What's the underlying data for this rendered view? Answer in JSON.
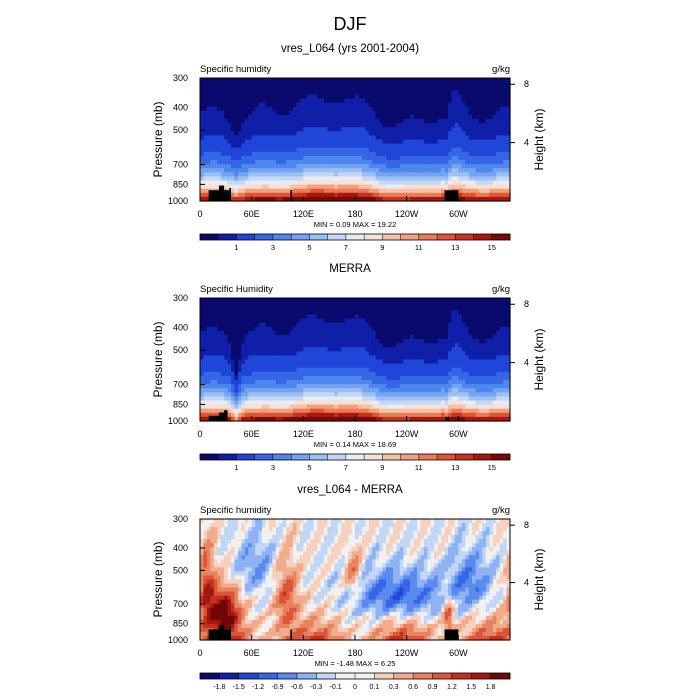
{
  "figure": {
    "title": "DJF"
  },
  "chart_data": [
    {
      "type": "heatmap",
      "title": "vres_L064 (yrs 2001-2004)",
      "left_label": "Specific humidity",
      "right_label": "g/kg",
      "xlabel": "",
      "ylabel": "Pressure (mb)",
      "ylabel_right": "Height (km)",
      "x_ticks": [
        "0",
        "60E",
        "120E",
        "180",
        "120W",
        "60W"
      ],
      "x_tick_values": [
        0,
        60,
        120,
        180,
        240,
        300
      ],
      "xlim": [
        0,
        360
      ],
      "y_ticks": [
        "300",
        "400",
        "500",
        "700",
        "850",
        "1000"
      ],
      "y_tick_values": [
        300,
        400,
        500,
        700,
        850,
        1000
      ],
      "ylim": [
        1000,
        300
      ],
      "y_ticks_right": [
        "8",
        "4"
      ],
      "y_tick_values_right": [
        8,
        4
      ],
      "stats": "MIN =   0.09  MAX =  19.22",
      "colorbar_labels": [
        "1",
        "3",
        "5",
        "7",
        "9",
        "11",
        "13",
        "15"
      ],
      "colorbar_levels": [
        0.5,
        1,
        2,
        3,
        4,
        5,
        6,
        7,
        8,
        9,
        10,
        11,
        12,
        13,
        14,
        15,
        16
      ],
      "field": "humidity",
      "variant": "model"
    },
    {
      "type": "heatmap",
      "title": "MERRA",
      "left_label": "Specific Humidity",
      "right_label": "g/kg",
      "xlabel": "",
      "ylabel": "Pressure (mb)",
      "ylabel_right": "Height (km)",
      "x_ticks": [
        "0",
        "60E",
        "120E",
        "180",
        "120W",
        "60W"
      ],
      "x_tick_values": [
        0,
        60,
        120,
        180,
        240,
        300
      ],
      "xlim": [
        0,
        360
      ],
      "y_ticks": [
        "300",
        "400",
        "500",
        "700",
        "850",
        "1000"
      ],
      "y_tick_values": [
        300,
        400,
        500,
        700,
        850,
        1000
      ],
      "ylim": [
        1000,
        300
      ],
      "y_ticks_right": [
        "8",
        "4"
      ],
      "y_tick_values_right": [
        8,
        4
      ],
      "stats": "MIN =   0.14  MAX =  18.69",
      "colorbar_labels": [
        "1",
        "3",
        "5",
        "7",
        "9",
        "11",
        "13",
        "15"
      ],
      "colorbar_levels": [
        0.5,
        1,
        2,
        3,
        4,
        5,
        6,
        7,
        8,
        9,
        10,
        11,
        12,
        13,
        14,
        15,
        16
      ],
      "field": "humidity",
      "variant": "obs"
    },
    {
      "type": "heatmap",
      "title": "vres_L064 - MERRA",
      "left_label": "Specific humidity",
      "right_label": "g/kg",
      "xlabel": "",
      "ylabel": "Pressure (mb)",
      "ylabel_right": "Height (km)",
      "x_ticks": [
        "0",
        "60E",
        "120E",
        "180",
        "120W",
        "60W"
      ],
      "x_tick_values": [
        0,
        60,
        120,
        180,
        240,
        300
      ],
      "xlim": [
        0,
        360
      ],
      "y_ticks": [
        "300",
        "400",
        "500",
        "700",
        "850",
        "1000"
      ],
      "y_tick_values": [
        300,
        400,
        500,
        700,
        850,
        1000
      ],
      "ylim": [
        1000,
        300
      ],
      "y_ticks_right": [
        "8",
        "4"
      ],
      "y_tick_values_right": [
        8,
        4
      ],
      "stats": "MIN =  -1.48  MAX =   6.25",
      "colorbar_labels": [
        "-1.8",
        "-1.5",
        "-1.2",
        "-0.9",
        "-0.6",
        "-0.3",
        "-0.1",
        "0",
        "0.1",
        "0.3",
        "0.6",
        "0.9",
        "1.2",
        "1.5",
        "1.8"
      ],
      "colorbar_levels": [
        -1.8,
        -1.5,
        -1.2,
        -0.9,
        -0.6,
        -0.3,
        -0.1,
        0,
        0.1,
        0.3,
        0.6,
        0.9,
        1.2,
        1.5,
        1.8
      ],
      "field": "difference",
      "variant": "diff"
    }
  ],
  "colors": {
    "humidity_palette": [
      "#0a0a6e",
      "#0f1fa8",
      "#1f46d8",
      "#3466e6",
      "#4f86ef",
      "#73a3f3",
      "#9cbff5",
      "#c4d7f6",
      "#e6edf7",
      "#f6e1d6",
      "#f6c3a8",
      "#f2a07e",
      "#eb7a56",
      "#de5434",
      "#c8321e",
      "#a81810",
      "#7a0a08"
    ],
    "difference_palette": [
      "#0a0a6e",
      "#0f1fa8",
      "#1f46d8",
      "#3466e6",
      "#5a8aee",
      "#8eb2f3",
      "#c2d6f6",
      "#eef2f7",
      "#f4efe9",
      "#f5d2bf",
      "#f0ac8c",
      "#e8825f",
      "#da5638",
      "#c4301d",
      "#a11710",
      "#720707"
    ],
    "terrain": "#000000"
  }
}
